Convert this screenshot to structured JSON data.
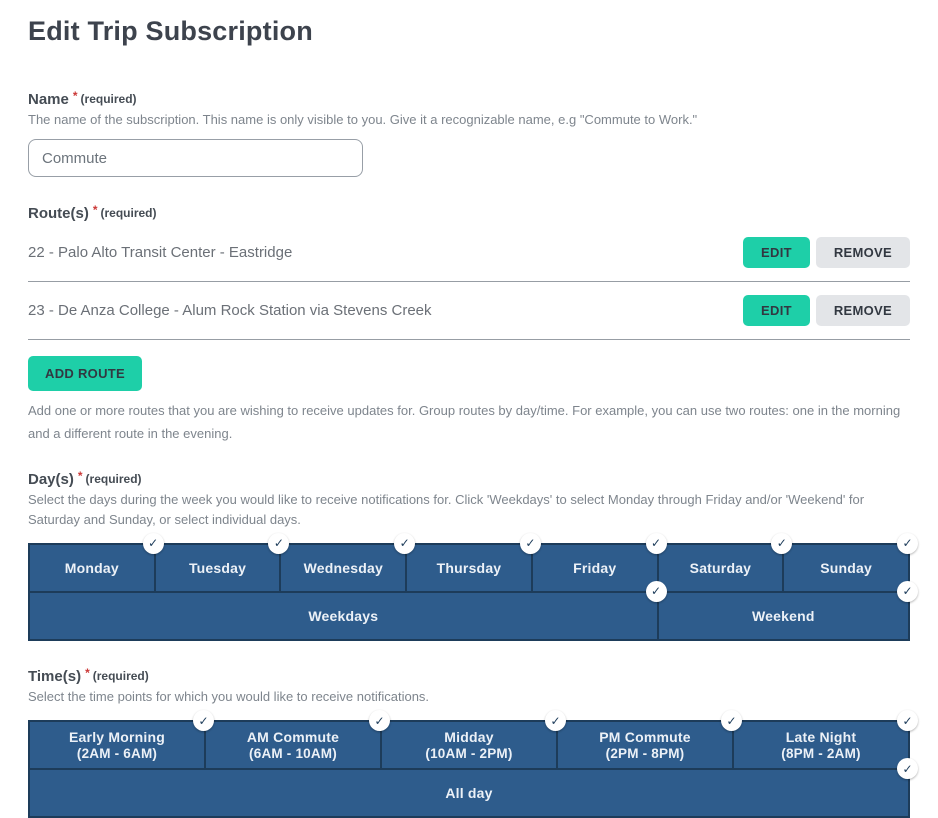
{
  "page": {
    "title": "Edit Trip Subscription"
  },
  "required": {
    "star": "*",
    "text": "(required)"
  },
  "icons": {
    "check": "✓"
  },
  "colors": {
    "accent_teal": "#1ecfa8",
    "gray_button": "#e3e5e8",
    "selector_blue": "#2e5c8c",
    "selector_border": "#1d3c5a",
    "required_red": "#cb3837"
  },
  "name_field": {
    "label": "Name",
    "description": "The name of the subscription. This name is only visible to you. Give it a recognizable name, e.g \"Commute to Work.\"",
    "value": "Commute"
  },
  "routes": {
    "label": "Route(s)",
    "edit_label": "EDIT",
    "remove_label": "REMOVE",
    "add_button_label": "ADD ROUTE",
    "description": "Add one or more routes that you are wishing to receive updates for. Group routes by day/time. For example, you can use two routes: one in the morning and a different route in the evening.",
    "items": [
      {
        "name": "22 - Palo Alto Transit Center - Eastridge"
      },
      {
        "name": "23 - De Anza College - Alum Rock Station via Stevens Creek"
      }
    ]
  },
  "days": {
    "label": "Day(s)",
    "description": "Select the days during the week you would like to receive notifications for. Click 'Weekdays' to select Monday through Friday and/or 'Weekend' for Saturday and Sunday, or select individual days.",
    "items": [
      {
        "label": "Monday",
        "selected": true
      },
      {
        "label": "Tuesday",
        "selected": true
      },
      {
        "label": "Wednesday",
        "selected": true
      },
      {
        "label": "Thursday",
        "selected": true
      },
      {
        "label": "Friday",
        "selected": true
      },
      {
        "label": "Saturday",
        "selected": true
      },
      {
        "label": "Sunday",
        "selected": true
      }
    ],
    "groups": [
      {
        "label": "Weekdays",
        "selected": true
      },
      {
        "label": "Weekend",
        "selected": true
      }
    ]
  },
  "times": {
    "label": "Time(s)",
    "description": "Select the time points for which you would like to receive notifications.",
    "items": [
      {
        "label": "Early Morning",
        "range": "(2AM - 6AM)",
        "selected": true
      },
      {
        "label": "AM Commute",
        "range": "(6AM - 10AM)",
        "selected": true
      },
      {
        "label": "Midday",
        "range": "(10AM - 2PM)",
        "selected": true
      },
      {
        "label": "PM Commute",
        "range": "(2PM - 8PM)",
        "selected": true
      },
      {
        "label": "Late Night",
        "range": "(8PM - 2AM)",
        "selected": true
      }
    ],
    "all_day": {
      "label": "All day",
      "selected": true
    }
  }
}
